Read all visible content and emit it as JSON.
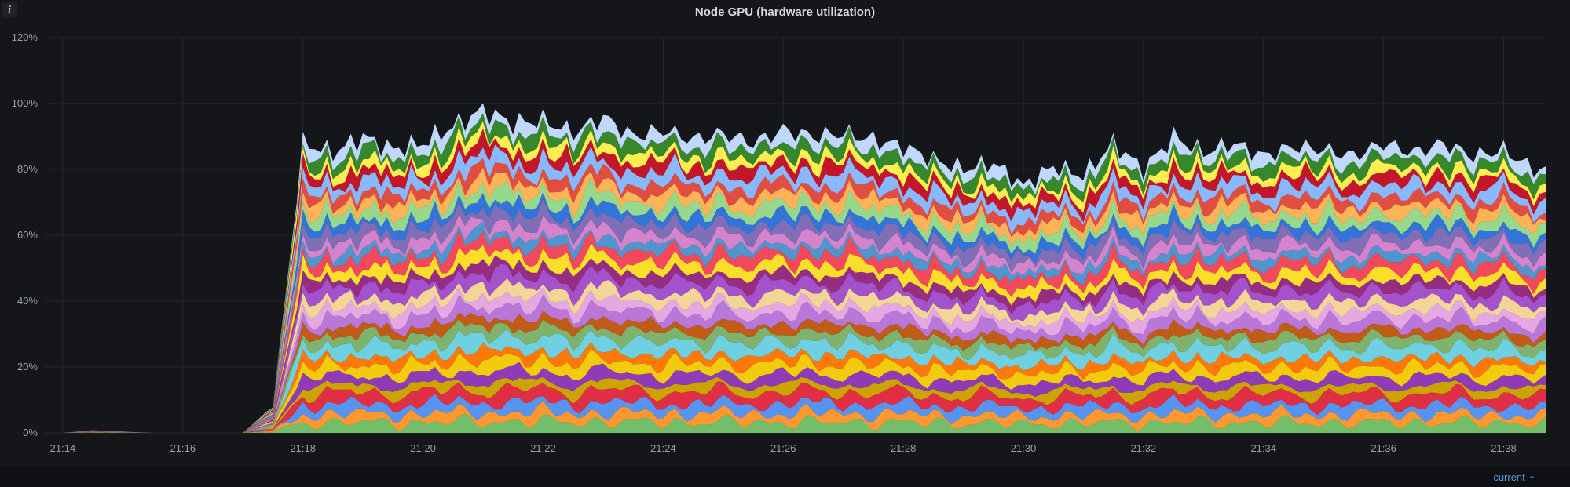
{
  "panel": {
    "title": "Node GPU (hardware utilization)",
    "info_icon": "i"
  },
  "footer": {
    "sort_label": "current",
    "caret": "⌄",
    "link_color": "#4f9ee8"
  },
  "chart_data": {
    "type": "area",
    "stacked": true,
    "title": "Node GPU (hardware utilization)",
    "xlabel": "",
    "ylabel": "",
    "y_unit": "%",
    "ylim": [
      0,
      120
    ],
    "grid": true,
    "legend_position": "bottom-right-collapsed",
    "background": "#141619",
    "grid_color": "#26282d",
    "axis_text_color": "#9aa0a6",
    "y_ticks": [
      0,
      20,
      40,
      60,
      80,
      100,
      120
    ],
    "y_tick_labels": [
      "0%",
      "20%",
      "40%",
      "60%",
      "80%",
      "100%",
      "120%"
    ],
    "time_start": "21:14",
    "time_end": "21:38",
    "x_tick_minutes": [
      0,
      2,
      4,
      6,
      8,
      10,
      12,
      14,
      16,
      18,
      20,
      22,
      24
    ],
    "x_tick_labels": [
      "21:14",
      "21:16",
      "21:18",
      "21:20",
      "21:22",
      "21:24",
      "21:26",
      "21:28",
      "21:30",
      "21:32",
      "21:34",
      "21:36",
      "21:38"
    ],
    "sample_step_min": 0.5,
    "total_stack_percent": [
      0,
      0.8,
      0.4,
      0,
      0,
      0,
      0,
      8,
      88,
      85,
      90,
      86,
      88,
      93,
      98,
      94,
      95,
      91,
      96,
      90,
      92,
      89,
      91,
      88,
      92,
      90,
      91,
      89,
      87,
      83,
      80,
      82,
      75,
      81,
      78,
      88,
      80,
      90,
      85,
      88,
      84,
      87,
      86,
      84,
      88,
      85,
      88,
      84,
      86,
      80
    ],
    "series_count": 30,
    "series_colors": [
      "#73BF69",
      "#FF9830",
      "#5794F2",
      "#E02F44",
      "#CCA300",
      "#8F3BB8",
      "#F2CC0C",
      "#FF780A",
      "#6ED0E0",
      "#7EB26D",
      "#C15C17",
      "#B877D9",
      "#E5A8E2",
      "#F4D598",
      "#A352CC",
      "#962D82",
      "#FADE2A",
      "#F2495C",
      "#5195CE",
      "#D683CE",
      "#806EB7",
      "#3274D9",
      "#96D98D",
      "#FFB357",
      "#E24D42",
      "#8AB8FF",
      "#C4162A",
      "#FFEE52",
      "#37872D",
      "#C0D8FF"
    ],
    "series_weights": [
      1.1,
      0.9,
      1.0,
      1.2,
      0.8,
      1.0,
      1.1,
      0.9,
      1.3,
      1.0,
      0.85,
      1.1,
      0.95,
      1.0,
      1.2,
      0.9,
      1.05,
      1.1,
      0.8,
      1.0,
      1.15,
      0.9,
      1.1,
      1.0,
      0.95,
      1.2,
      1.0,
      0.85,
      1.1,
      1.0
    ]
  }
}
